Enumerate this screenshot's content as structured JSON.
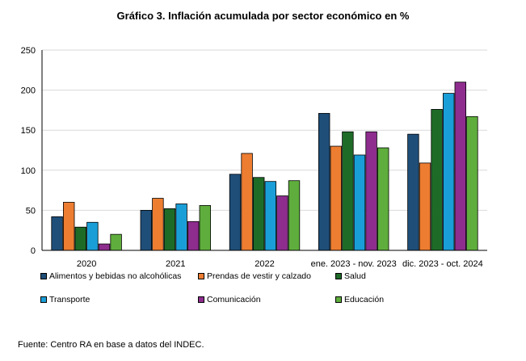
{
  "chart_data": {
    "type": "bar",
    "title": "Gráfico 3. Inflación acumulada por sector económico en %",
    "categories": [
      "2020",
      "2021",
      "2022",
      "ene. 2023 - nov. 2023",
      "dic. 2023 - oct. 2024"
    ],
    "series": [
      {
        "name": "Alimentos y bebidas no alcohólicas",
        "color": "#1f4e79",
        "values": [
          42,
          50,
          95,
          171,
          145
        ]
      },
      {
        "name": "Prendas de vestir y calzado",
        "color": "#ed7d31",
        "values": [
          60,
          65,
          121,
          130,
          109
        ]
      },
      {
        "name": "Salud",
        "color": "#1e6b28",
        "values": [
          29,
          52,
          91,
          148,
          176
        ]
      },
      {
        "name": "Transporte",
        "color": "#1a9ed8",
        "values": [
          35,
          58,
          86,
          119,
          196
        ]
      },
      {
        "name": "Comunicación",
        "color": "#8e2d8e",
        "values": [
          8,
          36,
          68,
          148,
          210
        ]
      },
      {
        "name": "Educación",
        "color": "#5fae3d",
        "values": [
          20,
          56,
          87,
          128,
          167
        ]
      }
    ],
    "yticks": [
      0,
      50,
      100,
      150,
      200,
      250
    ],
    "ylim": [
      0,
      250
    ],
    "xlabel": "",
    "ylabel": "",
    "grid": true
  },
  "source": "Fuente: Centro RA en base a datos del INDEC."
}
